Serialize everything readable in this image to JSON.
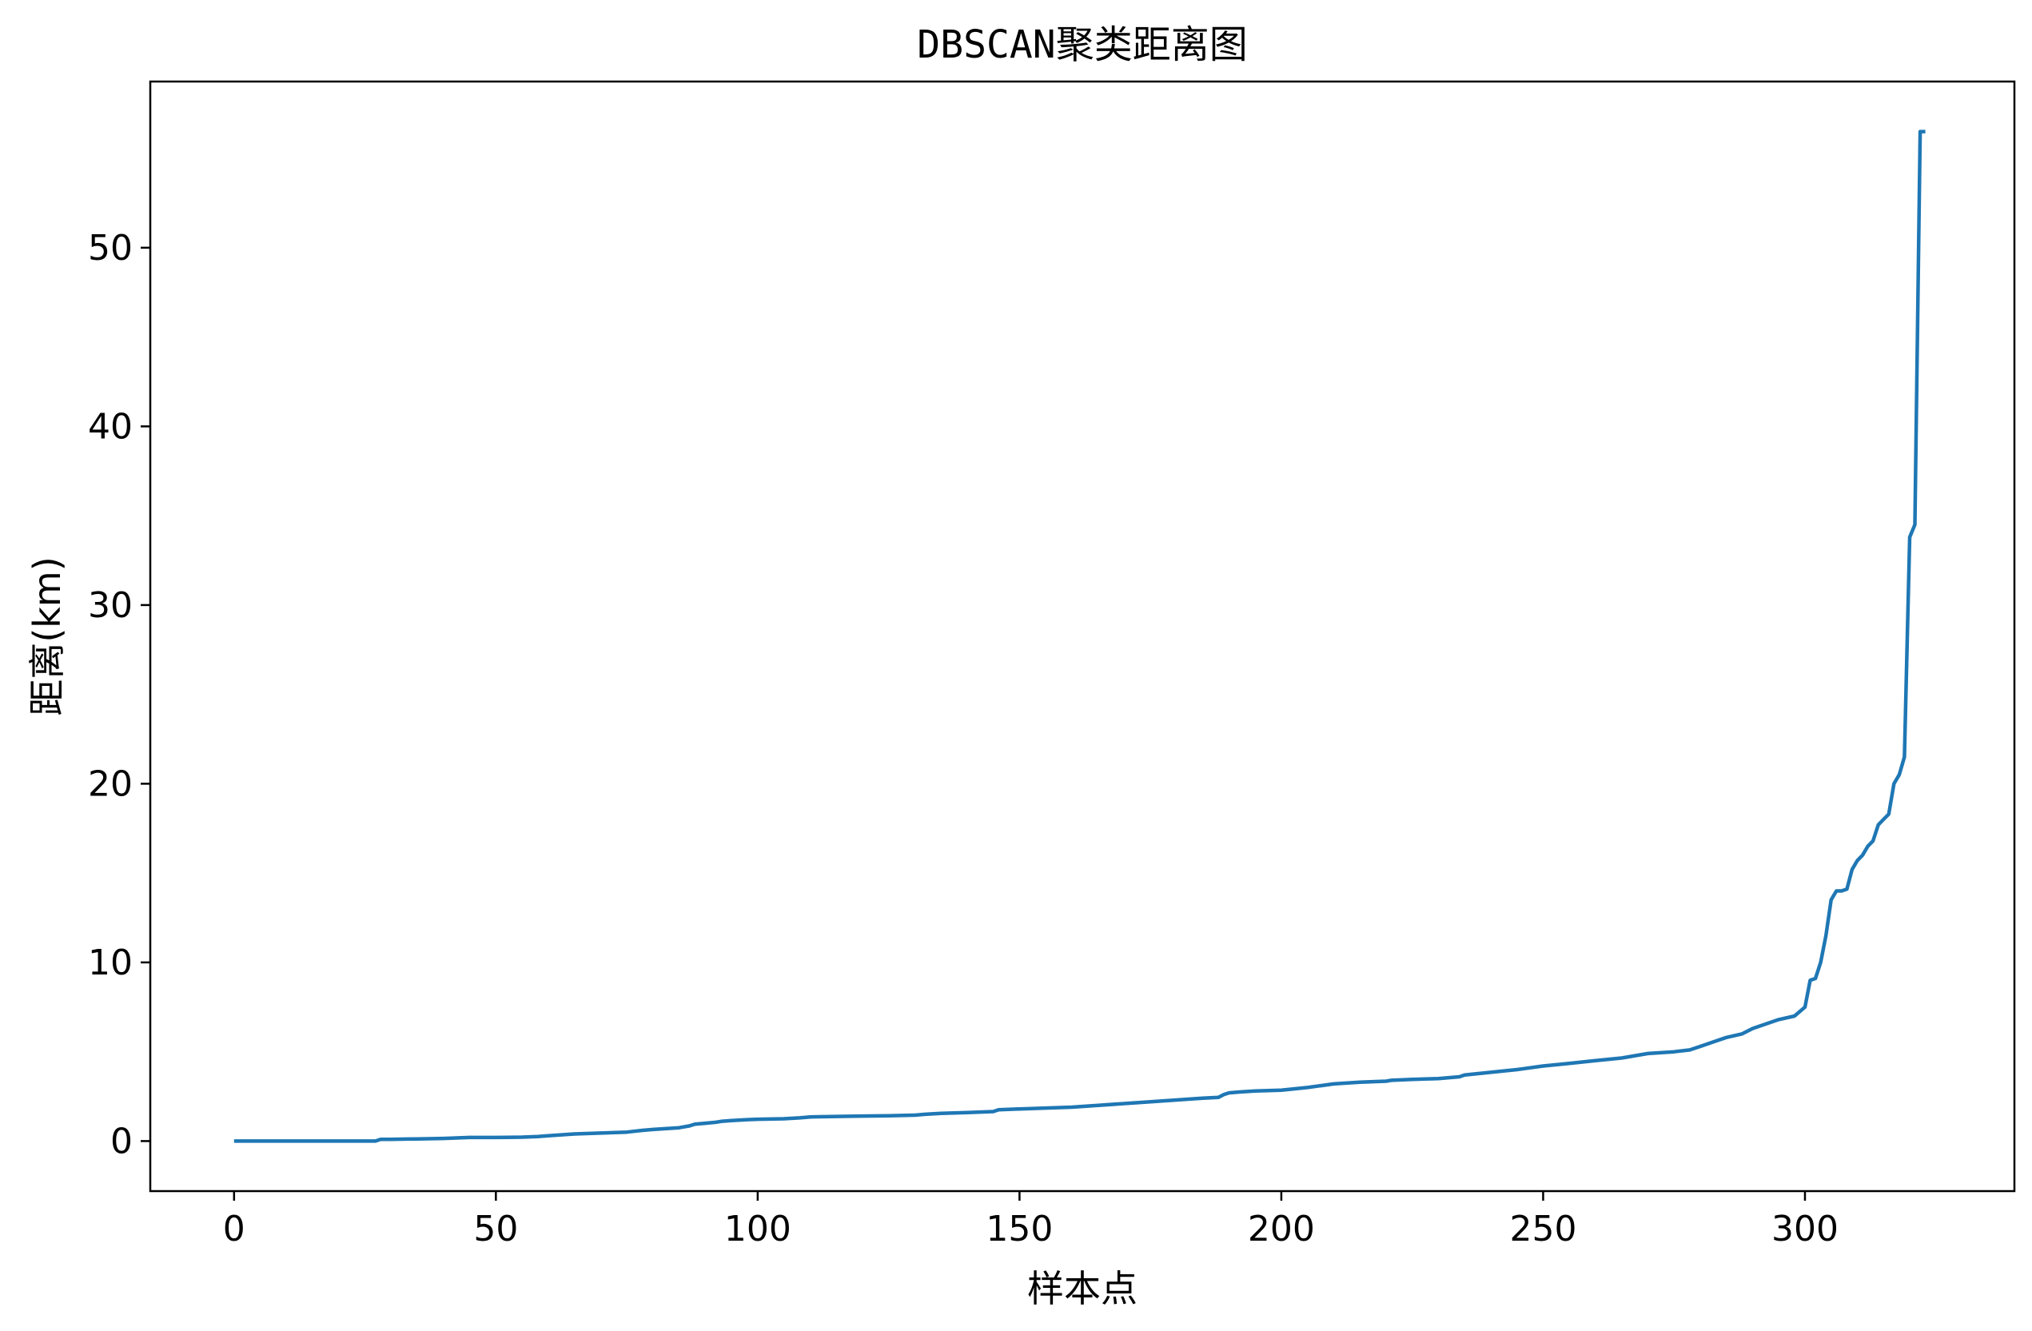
{
  "chart_data": {
    "type": "line",
    "title": "DBSCAN聚类距离图",
    "xlabel": "样本点",
    "ylabel": "距离(km)",
    "xlim": [
      -16,
      340
    ],
    "ylim": [
      -2.8,
      59.3
    ],
    "xticks": [
      0,
      50,
      100,
      150,
      200,
      250,
      300
    ],
    "yticks": [
      0,
      10,
      20,
      30,
      40,
      50
    ],
    "grid": false,
    "line_color": "#1f77b4",
    "series": [
      {
        "x": [
          0,
          10,
          20,
          27,
          28,
          30,
          35,
          40,
          45,
          50,
          55,
          58,
          60,
          65,
          70,
          75,
          78,
          80,
          85,
          87,
          88,
          90,
          92,
          93,
          95,
          98,
          100,
          105,
          108,
          110,
          115,
          120,
          125,
          130,
          132,
          135,
          140,
          145,
          146,
          150,
          155,
          160,
          165,
          170,
          175,
          180,
          185,
          188,
          189,
          190,
          192,
          195,
          200,
          205,
          210,
          215,
          220,
          221,
          225,
          230,
          234,
          235,
          240,
          245,
          250,
          255,
          260,
          265,
          270,
          275,
          278,
          280,
          283,
          285,
          288,
          290,
          293,
          295,
          298,
          300,
          301,
          302,
          303,
          304,
          305,
          306,
          307,
          308,
          309,
          310,
          311,
          312,
          313,
          314,
          315,
          316,
          317,
          318,
          319,
          320,
          321,
          322,
          323
        ],
        "y": [
          0.0,
          0.0,
          0.0,
          0.0,
          0.1,
          0.1,
          0.12,
          0.15,
          0.2,
          0.2,
          0.22,
          0.25,
          0.3,
          0.4,
          0.45,
          0.5,
          0.6,
          0.65,
          0.75,
          0.85,
          0.95,
          1.0,
          1.05,
          1.1,
          1.15,
          1.2,
          1.22,
          1.25,
          1.3,
          1.35,
          1.38,
          1.4,
          1.42,
          1.45,
          1.5,
          1.55,
          1.6,
          1.65,
          1.75,
          1.8,
          1.85,
          1.9,
          2.0,
          2.1,
          2.2,
          2.3,
          2.4,
          2.45,
          2.6,
          2.7,
          2.75,
          2.8,
          2.85,
          3.0,
          3.2,
          3.3,
          3.35,
          3.4,
          3.45,
          3.5,
          3.6,
          3.7,
          3.85,
          4.0,
          4.2,
          4.35,
          4.5,
          4.65,
          4.9,
          5.0,
          5.1,
          5.3,
          5.6,
          5.8,
          6.0,
          6.3,
          6.6,
          6.8,
          7.0,
          7.5,
          9.0,
          9.1,
          10.0,
          11.5,
          13.5,
          14.0,
          14.0,
          14.1,
          15.2,
          15.7,
          16.0,
          16.5,
          16.8,
          17.7,
          18.0,
          18.3,
          20.0,
          20.5,
          21.5,
          33.8,
          34.5,
          56.5,
          56.5
        ]
      }
    ]
  }
}
